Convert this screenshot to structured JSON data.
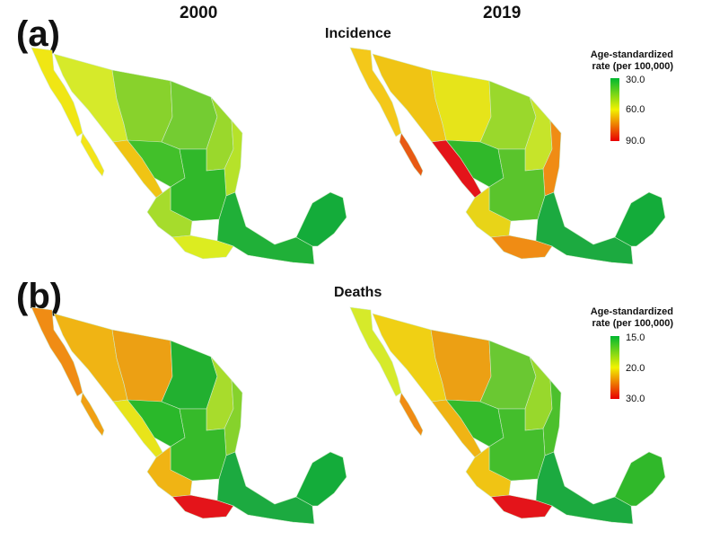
{
  "columns": {
    "left_year": "2000",
    "right_year": "2019"
  },
  "panels": [
    {
      "label": "(a)",
      "title": "Incidence",
      "legend": {
        "title_line1": "Age-standardized",
        "title_line2": "rate (per 100,000)",
        "ticks": [
          "30.0",
          "60.0",
          "90.0"
        ],
        "colors": [
          "#00b830",
          "#f2f200",
          "#e80000"
        ]
      },
      "maps": [
        {
          "year": "2000",
          "regions": {
            "baja_north": "#f0e614",
            "baja_south": "#f3e41a",
            "sonora": "#d6ea2a",
            "chihuahua": "#88d22c",
            "coahuila": "#74cc32",
            "nuevo_leon": "#9ad82c",
            "tamaulipas": "#b6e22a",
            "sinaloa": "#f0c414",
            "durango": "#42c02a",
            "central": "#30b82a",
            "west": "#a6dc2c",
            "south": "#20b038",
            "guerrero": "#dcec20",
            "peninsula": "#14ac3a"
          }
        },
        {
          "year": "2019",
          "regions": {
            "baja_north": "#f4c81a",
            "baja_south": "#e85a14",
            "sonora": "#f0c414",
            "chihuahua": "#e6e41a",
            "coahuila": "#9ad82c",
            "nuevo_leon": "#c6e42a",
            "tamaulipas": "#f08c14",
            "sinaloa": "#e4141a",
            "durango": "#30b82a",
            "central": "#5ac42c",
            "west": "#e8d418",
            "south": "#1caa40",
            "guerrero": "#f08c14",
            "peninsula": "#14ac3a"
          }
        }
      ]
    },
    {
      "label": "(b)",
      "title": "Deaths",
      "legend": {
        "title_line1": "Age-standardized",
        "title_line2": "rate (per 100,000)",
        "ticks": [
          "15.0",
          "20.0",
          "30.0"
        ],
        "colors": [
          "#00b830",
          "#f2f200",
          "#e80000"
        ]
      },
      "maps": [
        {
          "year": "2000",
          "regions": {
            "baja_north": "#f08c14",
            "baja_south": "#f0a014",
            "sonora": "#f0b414",
            "chihuahua": "#eca014",
            "coahuila": "#22b030",
            "nuevo_leon": "#a8dc2c",
            "tamaulipas": "#86d22c",
            "sinaloa": "#e8e41a",
            "durango": "#2ab82a",
            "central": "#36ba2a",
            "west": "#f0b414",
            "south": "#1caa40",
            "guerrero": "#e4141a",
            "peninsula": "#14ac3a"
          }
        },
        {
          "year": "2019",
          "regions": {
            "baja_north": "#d6ea2a",
            "baja_south": "#f08c14",
            "sonora": "#f0d014",
            "chihuahua": "#eca014",
            "coahuila": "#6ac832",
            "nuevo_leon": "#98d82c",
            "tamaulipas": "#4cc02c",
            "sinaloa": "#f0b414",
            "durango": "#34ba2a",
            "central": "#44be2c",
            "west": "#f0c414",
            "south": "#1caa40",
            "guerrero": "#e4141a",
            "peninsula": "#30b82a"
          }
        }
      ]
    }
  ]
}
